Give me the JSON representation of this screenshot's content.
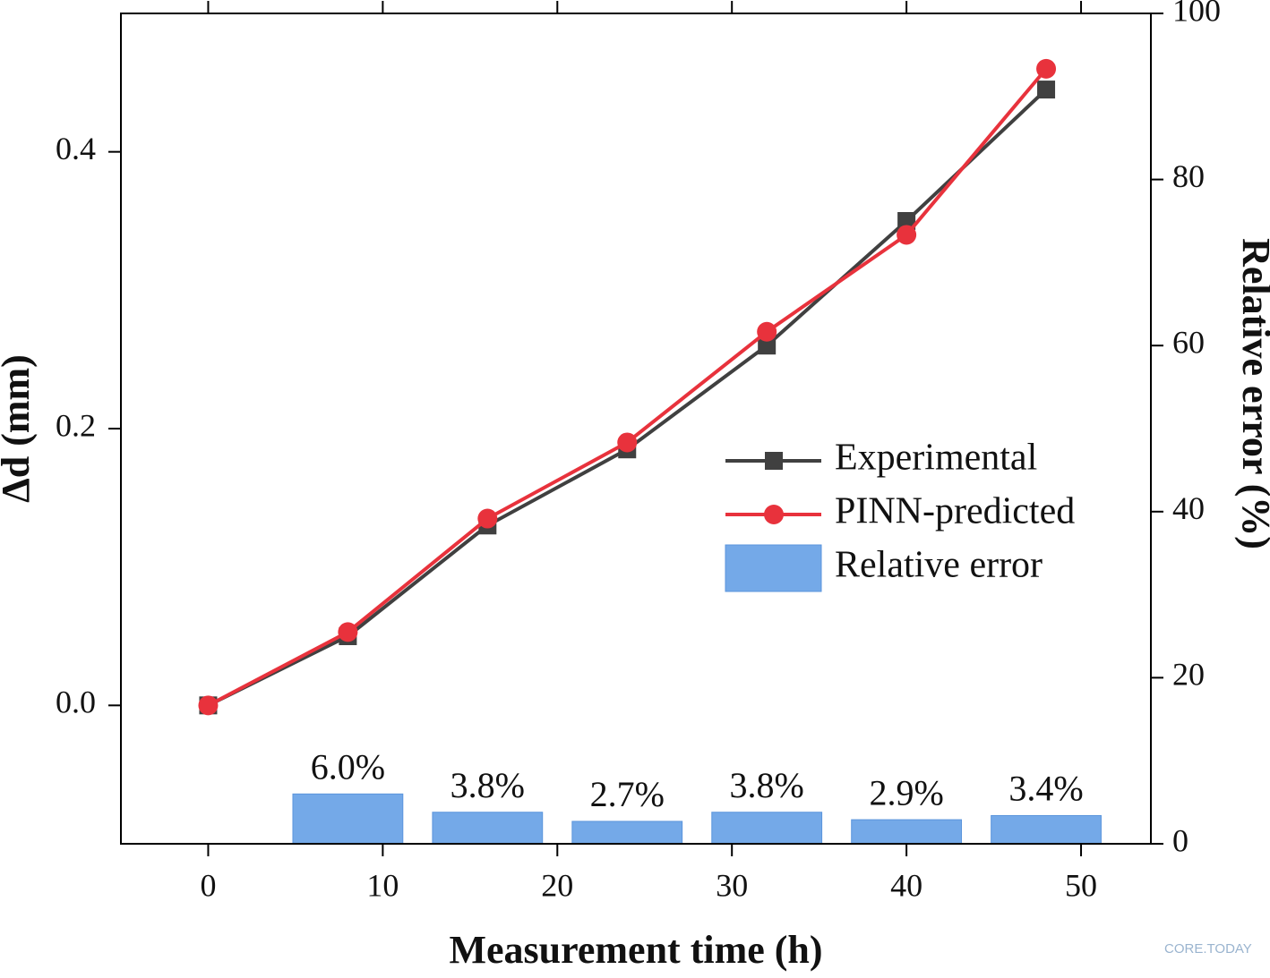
{
  "chart_data": {
    "type": "line",
    "xlabel": "Measurement time (h)",
    "ylabel": "Δd (mm)",
    "y2label": "Relative error (%)",
    "x": [
      0,
      8,
      16,
      24,
      32,
      40,
      48
    ],
    "xlim": [
      -5,
      54
    ],
    "xticks": [
      0,
      10,
      20,
      30,
      40,
      50
    ],
    "ylim": [
      -0.1,
      0.5
    ],
    "yticks": [
      {
        "value": 0,
        "label": "0.0"
      },
      0.2,
      0.4
    ],
    "y2lim": [
      0,
      100
    ],
    "y2ticks": [
      0,
      20,
      40,
      60,
      80,
      100
    ],
    "legend": "right",
    "series": [
      {
        "name": "Experimental",
        "color": "#404040",
        "marker": "square",
        "values": [
          0,
          0.05,
          0.13,
          0.185,
          0.26,
          0.35,
          0.445
        ]
      },
      {
        "name": "PINN-predicted",
        "color": "#e8323c",
        "marker": "circle",
        "values": [
          0,
          0.053,
          0.135,
          0.19,
          0.27,
          0.34,
          0.46
        ]
      },
      {
        "name": "Relative error",
        "type": "bar",
        "axis": "y2",
        "color": "#74a9e8",
        "x": [
          8,
          16,
          24,
          32,
          40,
          48
        ],
        "values": [
          6.0,
          3.8,
          2.7,
          3.8,
          2.9,
          3.4
        ],
        "value_labels": [
          "6.0%",
          "3.8%",
          "2.7%",
          "3.8%",
          "2.9%",
          "3.4%"
        ]
      }
    ],
    "watermark": "CORE.TODAY"
  }
}
